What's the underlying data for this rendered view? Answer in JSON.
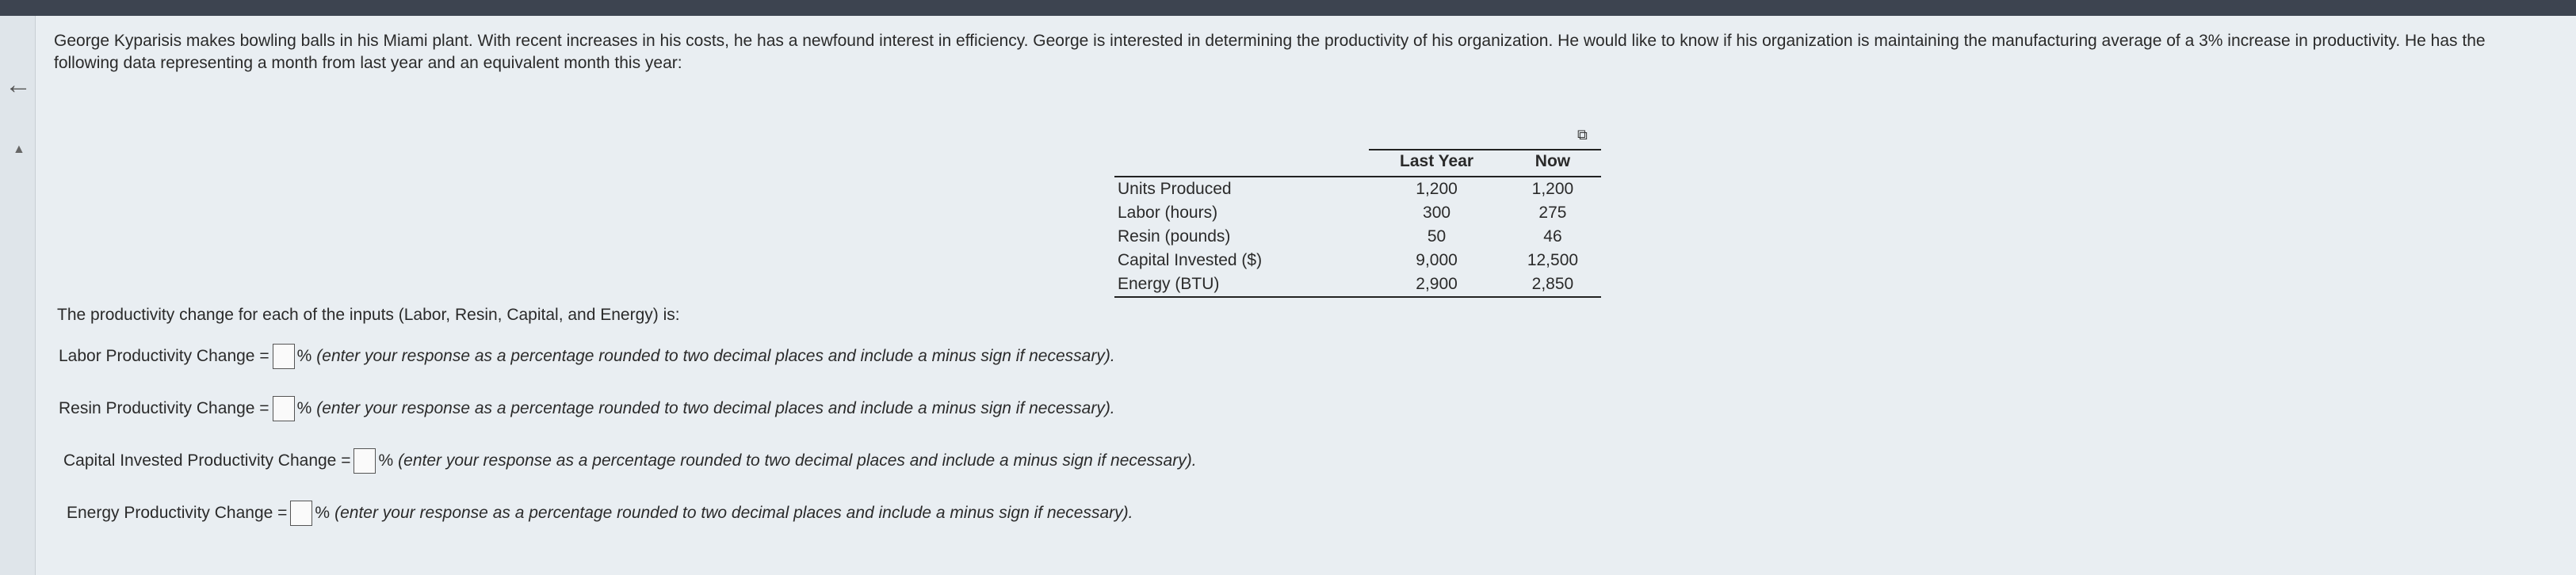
{
  "intro": "George Kyparisis makes bowling balls in his Miami plant. With recent increases in his costs, he has a newfound interest in efficiency. George is interested in determining the productivity of his organization. He would like to know if his organization is maintaining the manufacturing average of a 3% increase in productivity. He has the following data representing a month from last year and an equivalent month this year:",
  "table": {
    "headers": [
      "Last Year",
      "Now"
    ],
    "rows": [
      {
        "label": "Units Produced",
        "last_year": "1,200",
        "now": "1,200"
      },
      {
        "label": "Labor (hours)",
        "last_year": "300",
        "now": "275"
      },
      {
        "label": "Resin (pounds)",
        "last_year": "50",
        "now": "46"
      },
      {
        "label": "Capital Invested ($)",
        "last_year": "9,000",
        "now": "12,500"
      },
      {
        "label": "Energy (BTU)",
        "last_year": "2,900",
        "now": "2,850"
      }
    ]
  },
  "question": "The productivity change for each of the inputs (Labor, Resin, Capital, and Energy) is:",
  "answers": [
    {
      "label": "Labor Productivity Change =",
      "unit": "%",
      "hint": "(enter your response as a percentage rounded to two decimal places and include a minus sign if necessary).",
      "value": ""
    },
    {
      "label": "Resin Productivity Change =",
      "unit": "%",
      "hint": "(enter your response as a percentage rounded to two decimal places and include a minus sign if necessary).",
      "value": ""
    },
    {
      "label": "Capital Invested Productivity Change =",
      "unit": "%",
      "hint": "(enter your response as a percentage rounded to two decimal places and include a minus sign if necessary).",
      "value": ""
    },
    {
      "label": "Energy Productivity Change =",
      "unit": "%",
      "hint": "(enter your response as a percentage rounded to two decimal places and include a minus sign if necessary).",
      "value": ""
    }
  ],
  "icons": {
    "collapse": "left-arrow-icon",
    "scroll": "scroll-up-icon",
    "copy": "copy-table-icon"
  }
}
